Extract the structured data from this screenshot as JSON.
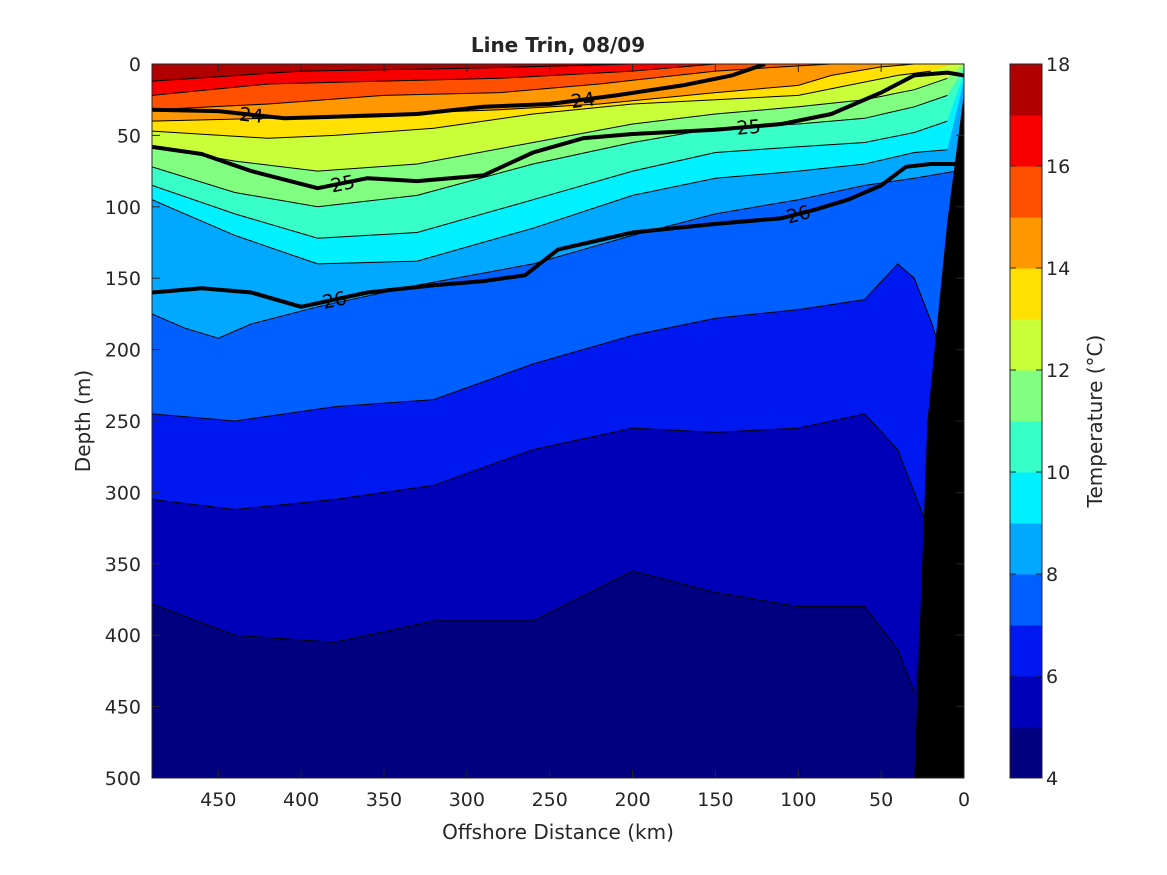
{
  "chart_data": {
    "type": "contour",
    "title": "Line Trin, 08/09",
    "xlabel": "Offshore Distance (km)",
    "ylabel": "Depth (m)",
    "colorbar_label": "Temperature (°C)",
    "xlim": [
      490,
      0
    ],
    "x_reversed": true,
    "ylim": [
      0,
      500
    ],
    "y_reversed": true,
    "x_ticks": [
      450,
      400,
      350,
      300,
      250,
      200,
      150,
      100,
      50,
      0
    ],
    "y_ticks": [
      0,
      50,
      100,
      150,
      200,
      250,
      300,
      350,
      400,
      450,
      500
    ],
    "colorbar": {
      "range": [
        4,
        18
      ],
      "ticks": [
        4,
        6,
        8,
        10,
        12,
        14,
        16,
        18
      ],
      "levels": [
        4,
        5,
        6,
        7,
        8,
        9,
        10,
        11,
        12,
        13,
        14,
        15,
        16,
        17,
        18
      ],
      "colors": [
        "#000080",
        "#0000b8",
        "#0018f0",
        "#0060ff",
        "#00a8ff",
        "#00f0ff",
        "#38ffc8",
        "#80ff80",
        "#c8ff38",
        "#ffe000",
        "#ff9800",
        "#ff5000",
        "#f80000",
        "#b00000"
      ]
    },
    "temperature_isotherms": [
      {
        "t": 17,
        "x": [
          490,
          400,
          300,
          200,
          150,
          120,
          110,
          95,
          80
        ],
        "y": [
          12,
          5,
          3,
          0,
          0,
          0,
          0,
          0,
          0
        ]
      },
      {
        "t": 16,
        "x": [
          490,
          420,
          350,
          280,
          200,
          150,
          110,
          90,
          70
        ],
        "y": [
          22,
          14,
          12,
          10,
          5,
          0,
          0,
          0,
          0
        ]
      },
      {
        "t": 15,
        "x": [
          490,
          420,
          350,
          280,
          220,
          150,
          110,
          80,
          60,
          45
        ],
        "y": [
          32,
          28,
          22,
          20,
          14,
          5,
          2,
          0,
          0,
          0
        ]
      },
      {
        "t": 14,
        "x": [
          490,
          420,
          350,
          280,
          220,
          150,
          100,
          80,
          50,
          30
        ],
        "y": [
          40,
          38,
          35,
          32,
          28,
          20,
          15,
          8,
          2,
          0
        ]
      },
      {
        "t": 13,
        "x": [
          490,
          420,
          380,
          320,
          260,
          200,
          150,
          100,
          70,
          40,
          20
        ],
        "y": [
          47,
          52,
          50,
          45,
          35,
          28,
          25,
          22,
          15,
          8,
          5
        ]
      },
      {
        "t": 12,
        "x": [
          490,
          440,
          390,
          330,
          260,
          200,
          150,
          100,
          60,
          30,
          10
        ],
        "y": [
          58,
          68,
          75,
          70,
          55,
          42,
          35,
          30,
          25,
          18,
          10
        ]
      },
      {
        "t": 11,
        "x": [
          490,
          440,
          390,
          330,
          260,
          200,
          150,
          100,
          60,
          30,
          10
        ],
        "y": [
          72,
          90,
          100,
          92,
          70,
          55,
          45,
          42,
          38,
          30,
          22
        ]
      },
      {
        "t": 10,
        "x": [
          490,
          440,
          390,
          330,
          260,
          200,
          150,
          100,
          60,
          30,
          10
        ],
        "y": [
          85,
          105,
          122,
          118,
          95,
          75,
          62,
          58,
          55,
          48,
          40
        ]
      },
      {
        "t": 9,
        "x": [
          490,
          440,
          390,
          330,
          260,
          200,
          150,
          100,
          60,
          30,
          10
        ],
        "y": [
          95,
          120,
          140,
          138,
          115,
          92,
          80,
          75,
          70,
          62,
          60
        ]
      },
      {
        "t": 8,
        "x": [
          490,
          470,
          450,
          430,
          390,
          330,
          260,
          200,
          150,
          100,
          60,
          30,
          5
        ],
        "y": [
          175,
          185,
          192,
          182,
          170,
          155,
          140,
          120,
          105,
          95,
          85,
          80,
          75
        ]
      },
      {
        "t": 7,
        "x": [
          490,
          440,
          380,
          320,
          260,
          200,
          150,
          100,
          60,
          40,
          30,
          20,
          10
        ],
        "y": [
          245,
          250,
          240,
          235,
          210,
          190,
          178,
          172,
          165,
          140,
          150,
          180,
          215
        ]
      },
      {
        "t": 6,
        "x": [
          490,
          440,
          380,
          320,
          260,
          200,
          150,
          100,
          60,
          40,
          30,
          20
        ],
        "y": [
          305,
          312,
          305,
          295,
          270,
          255,
          258,
          255,
          245,
          270,
          300,
          330
        ]
      },
      {
        "t": 5,
        "x": [
          490,
          440,
          380,
          320,
          260,
          200,
          150,
          100,
          60,
          40,
          30
        ],
        "y": [
          378,
          400,
          405,
          390,
          390,
          355,
          370,
          380,
          380,
          410,
          440
        ]
      }
    ],
    "density_isopycnals": [
      {
        "label": "24",
        "x": [
          490,
          450,
          410,
          380,
          330,
          290,
          250,
          210,
          170,
          140,
          120
        ],
        "y": [
          32,
          33,
          38,
          37,
          35,
          30,
          28,
          22,
          15,
          8,
          0
        ]
      },
      {
        "label": "25",
        "x": [
          490,
          460,
          430,
          390,
          360,
          330,
          290,
          260,
          230,
          200,
          150,
          110,
          80,
          50,
          30,
          10,
          0
        ],
        "y": [
          58,
          63,
          75,
          87,
          80,
          82,
          78,
          62,
          52,
          49,
          46,
          42,
          35,
          20,
          8,
          6,
          8
        ]
      },
      {
        "label": "26",
        "x": [
          490,
          460,
          430,
          400,
          360,
          320,
          290,
          265,
          245,
          200,
          150,
          110,
          90,
          70,
          50,
          35,
          20,
          5
        ],
        "y": [
          160,
          157,
          160,
          170,
          160,
          155,
          152,
          148,
          130,
          118,
          112,
          108,
          102,
          95,
          85,
          72,
          70,
          70
        ]
      }
    ],
    "coast_topography": {
      "x": [
        30,
        22,
        10,
        0
      ],
      "y": [
        500,
        250,
        110,
        20
      ]
    }
  }
}
